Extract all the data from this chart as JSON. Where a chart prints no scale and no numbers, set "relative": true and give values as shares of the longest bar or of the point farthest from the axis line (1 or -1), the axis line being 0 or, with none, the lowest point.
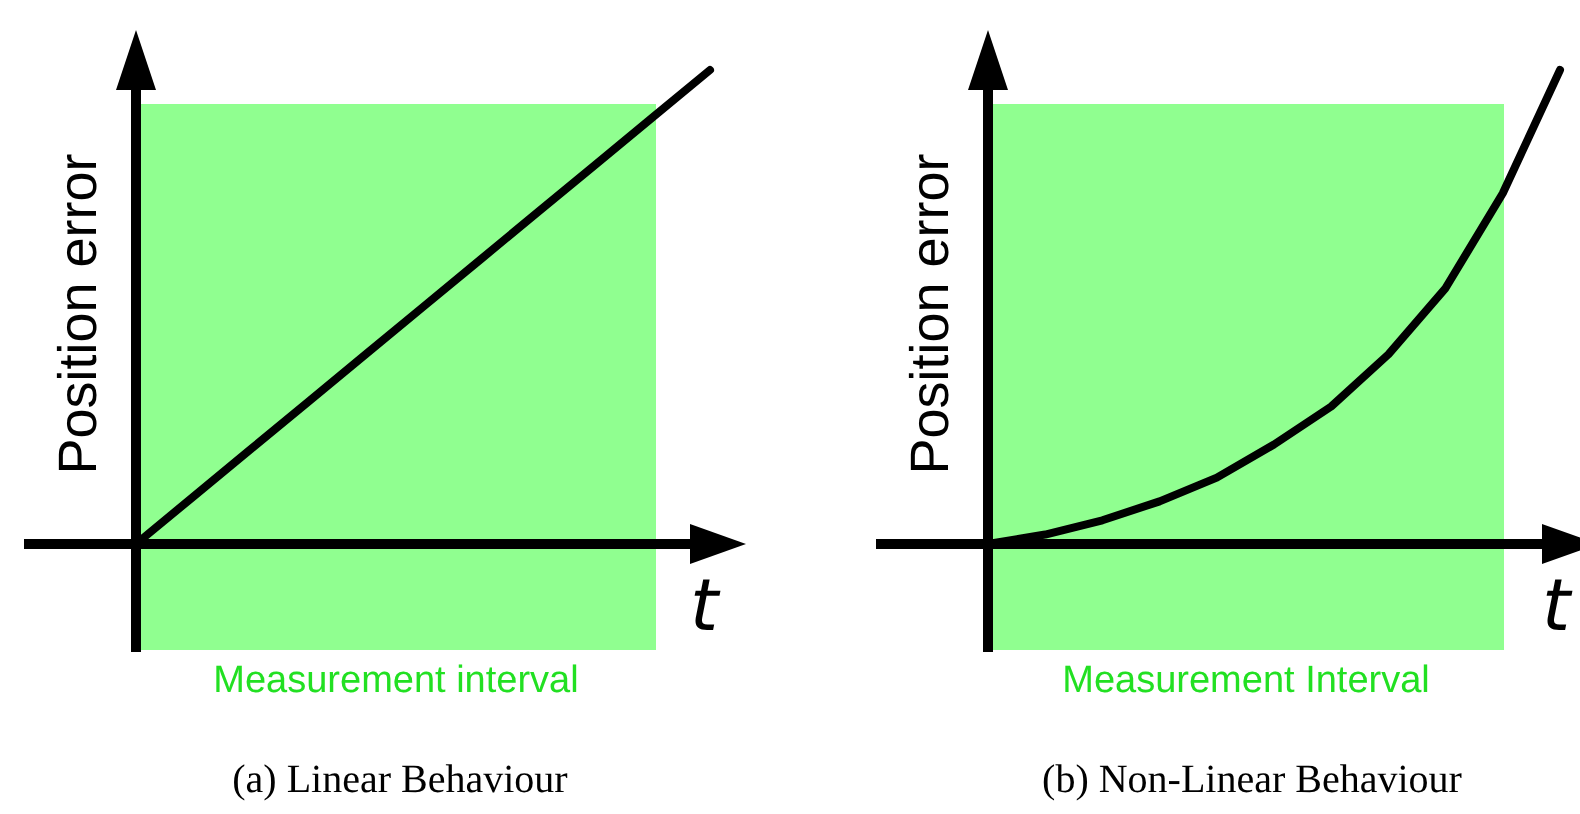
{
  "chart_data": [
    {
      "type": "line",
      "title": "(a) Linear Behaviour",
      "xlabel": "t",
      "ylabel": "Position error",
      "relative": true,
      "categories": [
        null,
        null,
        null,
        null,
        null,
        null,
        null,
        null,
        null,
        null,
        null
      ],
      "series": [
        {
          "color": "#000000",
          "values": [
            0,
            0.1,
            0.2,
            0.3,
            0.4,
            0.5,
            0.6,
            0.7,
            0.8,
            0.9,
            1
          ]
        }
      ],
      "annotations": [
        "Measurement interval"
      ]
    },
    {
      "type": "line",
      "title": "(b) Non-Linear Behaviour",
      "xlabel": "t",
      "ylabel": "Position error",
      "relative": true,
      "categories": [
        null,
        null,
        null,
        null,
        null,
        null,
        null,
        null,
        null,
        null,
        null
      ],
      "series": [
        {
          "color": "#000000",
          "values": [
            0,
            0.02,
            0.05,
            0.09,
            0.14,
            0.21,
            0.29,
            0.4,
            0.54,
            0.74,
            1
          ]
        }
      ],
      "annotations": [
        "Measurement Interval"
      ]
    }
  ]
}
